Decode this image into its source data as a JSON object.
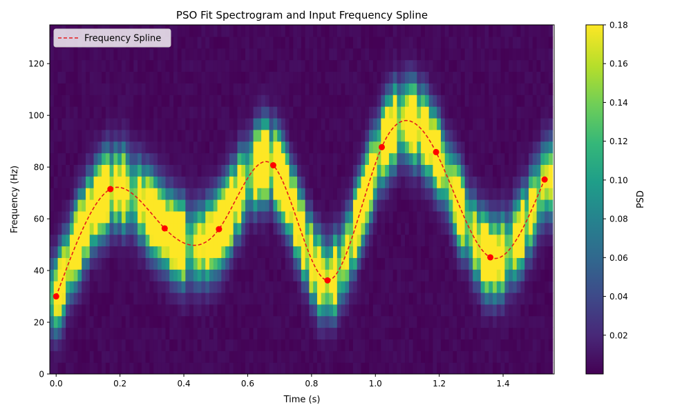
{
  "chart_data": {
    "type": "heatmap",
    "title": "PSO Fit Spectrogram and Input Frequency Spline",
    "xlabel": "Time (s)",
    "ylabel": "Frequency (Hz)",
    "xlim": [
      -0.02,
      1.56
    ],
    "ylim": [
      0,
      135
    ],
    "xticks": [
      0.0,
      0.2,
      0.4,
      0.6,
      0.8,
      1.0,
      1.2,
      1.4
    ],
    "xtick_labels": [
      "0.0",
      "0.2",
      "0.4",
      "0.6",
      "0.8",
      "1.0",
      "1.2",
      "1.4"
    ],
    "yticks": [
      0,
      20,
      40,
      60,
      80,
      100,
      120
    ],
    "ytick_labels": [
      "0",
      "20",
      "40",
      "60",
      "80",
      "100",
      "120"
    ],
    "colorbar": {
      "label": "PSD",
      "range": [
        0.0,
        0.18
      ],
      "ticks": [
        0.02,
        0.04,
        0.06,
        0.08,
        0.1,
        0.12,
        0.14,
        0.16,
        0.18
      ],
      "tick_labels": [
        "0.02",
        "0.04",
        "0.06",
        "0.08",
        "0.10",
        "0.12",
        "0.14",
        "0.16",
        "0.18"
      ],
      "colormap": "viridis"
    },
    "heatmap_model": {
      "time_bin_s": 0.0125,
      "freq_bin_hz": 4.5,
      "n_time_bins": 126,
      "n_freq_bins": 30,
      "peak_psd": 0.18,
      "note": "ridge follows frequency spline"
    },
    "series": [
      {
        "name": "Frequency Spline",
        "style": "dashed",
        "color": "#e41a1c",
        "x": [
          0.0,
          0.17,
          0.34,
          0.51,
          0.68,
          0.85,
          1.02,
          1.19,
          1.36,
          1.53
        ],
        "y": [
          30.0,
          71.5,
          56.3,
          56.0,
          80.7,
          36.2,
          87.7,
          85.8,
          45.1,
          75.2
        ]
      }
    ],
    "legend": {
      "position": "top-left",
      "entries": [
        "Frequency Spline"
      ]
    },
    "grid": false
  }
}
